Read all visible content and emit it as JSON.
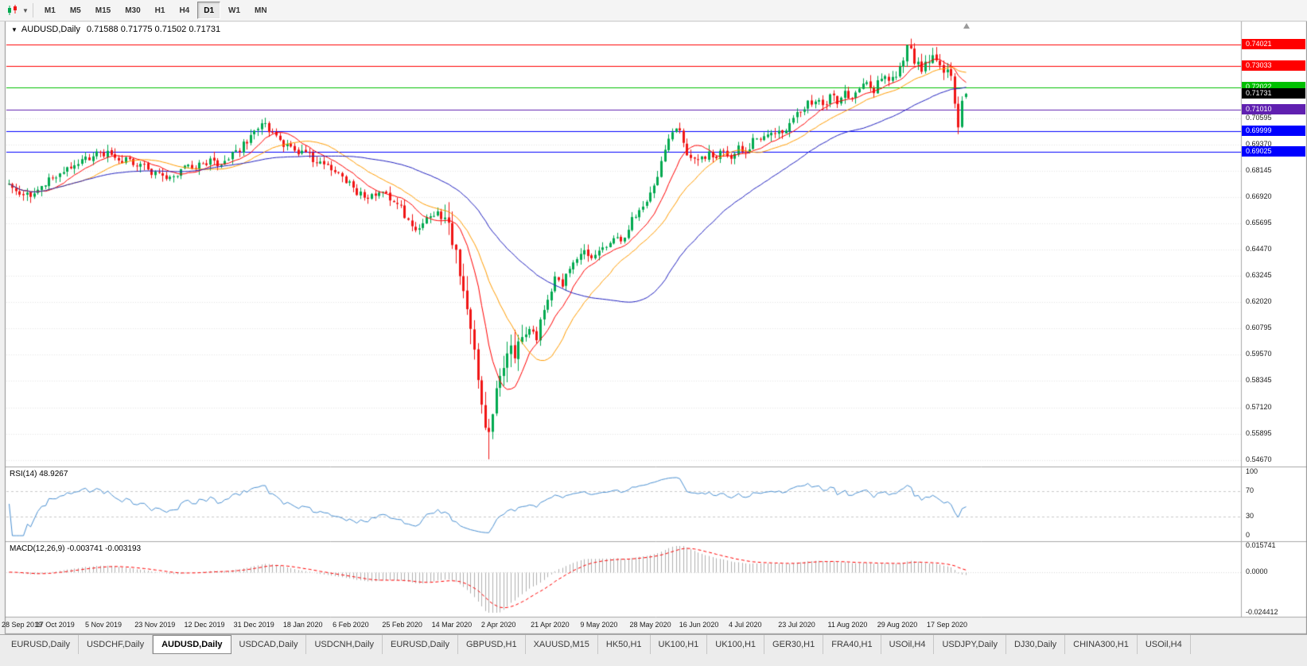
{
  "toolbar": {
    "timeframes": [
      {
        "label": "M1",
        "active": false
      },
      {
        "label": "M5",
        "active": false
      },
      {
        "label": "M15",
        "active": false
      },
      {
        "label": "M30",
        "active": false
      },
      {
        "label": "H1",
        "active": false
      },
      {
        "label": "H4",
        "active": false
      },
      {
        "label": "D1",
        "active": true
      },
      {
        "label": "W1",
        "active": false
      },
      {
        "label": "MN",
        "active": false
      }
    ]
  },
  "chart_data": {
    "type": "candlestick",
    "symbol": "AUDUSD,Daily",
    "ohlc_text": "0.71588 0.71775 0.71502 0.71731",
    "last_candle": {
      "o": 0.71588,
      "h": 0.71775,
      "l": 0.71502,
      "c": 0.71731
    },
    "price_range": {
      "top": 0.7455,
      "bottom": 0.544
    },
    "bars": 262,
    "up_color": "#00a94f",
    "down_color": "#f01515",
    "grid_color": "#e6e6e6",
    "y_ticks": [
      {
        "label": "0.70595",
        "value": 0.70595
      },
      {
        "label": "0.69370",
        "value": 0.6937
      },
      {
        "label": "0.68145",
        "value": 0.68145
      },
      {
        "label": "0.66920",
        "value": 0.6692
      },
      {
        "label": "0.65695",
        "value": 0.65695
      },
      {
        "label": "0.64470",
        "value": 0.6447
      },
      {
        "label": "0.63245",
        "value": 0.63245
      },
      {
        "label": "0.62020",
        "value": 0.6202
      },
      {
        "label": "0.60795",
        "value": 0.60795
      },
      {
        "label": "0.59570",
        "value": 0.5957
      },
      {
        "label": "0.58345",
        "value": 0.58345
      },
      {
        "label": "0.57120",
        "value": 0.5712
      },
      {
        "label": "0.55895",
        "value": 0.55895
      },
      {
        "label": "0.54670",
        "value": 0.5467
      }
    ],
    "price_lines": [
      {
        "label": "0.74021",
        "value": 0.74021,
        "color": "#ff0000"
      },
      {
        "label": "0.73033",
        "value": 0.73033,
        "color": "#ff0000"
      },
      {
        "label": "0.72022",
        "value": 0.72022,
        "color": "#00c000"
      },
      {
        "label": "0.71010",
        "value": 0.7101,
        "color": "#6020b0"
      },
      {
        "label": "0.69999",
        "value": 0.69999,
        "color": "#0000ff"
      },
      {
        "label": "0.69025",
        "value": 0.69025,
        "color": "#0000ff"
      }
    ],
    "current_price": {
      "label": "0.71731",
      "value": 0.71731,
      "color": "#000000"
    },
    "x_labels": [
      "28 Sep 2019",
      "17 Oct 2019",
      "5 Nov 2019",
      "23 Nov 2019",
      "12 Dec 2019",
      "31 Dec 2019",
      "18 Jan 2020",
      "6 Feb 2020",
      "25 Feb 2020",
      "14 Mar 2020",
      "2 Apr 2020",
      "21 Apr 2020",
      "9 May 2020",
      "28 May 2020",
      "16 Jun 2020",
      "4 Jul 2020",
      "23 Jul 2020",
      "11 Aug 2020",
      "29 Aug 2020",
      "17 Sep 2020"
    ],
    "waypoints": [
      [
        0,
        0.676
      ],
      [
        3,
        0.6718
      ],
      [
        6,
        0.67
      ],
      [
        9,
        0.6755
      ],
      [
        14,
        0.679
      ],
      [
        18,
        0.6845
      ],
      [
        23,
        0.6885
      ],
      [
        26,
        0.69
      ],
      [
        30,
        0.687
      ],
      [
        34,
        0.6855
      ],
      [
        38,
        0.682
      ],
      [
        41,
        0.68
      ],
      [
        44,
        0.6785
      ],
      [
        47,
        0.6815
      ],
      [
        51,
        0.6835
      ],
      [
        54,
        0.686
      ],
      [
        57,
        0.6845
      ],
      [
        60,
        0.688
      ],
      [
        63,
        0.692
      ],
      [
        66,
        0.6965
      ],
      [
        68,
        0.7015
      ],
      [
        70,
        0.7025
      ],
      [
        72,
        0.699
      ],
      [
        75,
        0.694
      ],
      [
        78,
        0.69
      ],
      [
        81,
        0.689
      ],
      [
        84,
        0.6865
      ],
      [
        87,
        0.6845
      ],
      [
        90,
        0.68
      ],
      [
        93,
        0.675
      ],
      [
        95,
        0.672
      ],
      [
        97,
        0.6685
      ],
      [
        99,
        0.67
      ],
      [
        101,
        0.6725
      ],
      [
        103,
        0.6705
      ],
      [
        105,
        0.668
      ],
      [
        107,
        0.664
      ],
      [
        109,
        0.658
      ],
      [
        111,
        0.6535
      ],
      [
        113,
        0.6555
      ],
      [
        115,
        0.6605
      ],
      [
        117,
        0.663
      ],
      [
        119,
        0.6575
      ],
      [
        121,
        0.648
      ],
      [
        123,
        0.635
      ],
      [
        125,
        0.618
      ],
      [
        127,
        0.594
      ],
      [
        129,
        0.576
      ],
      [
        131,
        0.556
      ],
      [
        132,
        0.57
      ],
      [
        133,
        0.581
      ],
      [
        134,
        0.589
      ],
      [
        135,
        0.593
      ],
      [
        136,
        0.6
      ],
      [
        137,
        0.603
      ],
      [
        138,
        0.5965
      ],
      [
        139,
        0.5985
      ],
      [
        140,
        0.6055
      ],
      [
        142,
        0.609
      ],
      [
        144,
        0.604
      ],
      [
        146,
        0.617
      ],
      [
        148,
        0.627
      ],
      [
        149,
        0.633
      ],
      [
        151,
        0.629
      ],
      [
        153,
        0.6365
      ],
      [
        155,
        0.6415
      ],
      [
        157,
        0.644
      ],
      [
        159,
        0.639
      ],
      [
        161,
        0.646
      ],
      [
        163,
        0.6455
      ],
      [
        165,
        0.651
      ],
      [
        167,
        0.6475
      ],
      [
        169,
        0.6555
      ],
      [
        171,
        0.661
      ],
      [
        173,
        0.666
      ],
      [
        175,
        0.67
      ],
      [
        177,
        0.68
      ],
      [
        179,
        0.693
      ],
      [
        181,
        0.7
      ],
      [
        183,
        0.699
      ],
      [
        185,
        0.6905
      ],
      [
        187,
        0.686
      ],
      [
        189,
        0.687
      ],
      [
        191,
        0.6895
      ],
      [
        193,
        0.687
      ],
      [
        195,
        0.6915
      ],
      [
        197,
        0.6885
      ],
      [
        199,
        0.6925
      ],
      [
        201,
        0.6895
      ],
      [
        203,
        0.695
      ],
      [
        205,
        0.6945
      ],
      [
        207,
        0.6985
      ],
      [
        209,
        0.7005
      ],
      [
        211,
        0.6975
      ],
      [
        213,
        0.7035
      ],
      [
        215,
        0.708
      ],
      [
        216,
        0.7105
      ],
      [
        218,
        0.7125
      ],
      [
        220,
        0.7155
      ],
      [
        222,
        0.7105
      ],
      [
        224,
        0.7165
      ],
      [
        226,
        0.7135
      ],
      [
        228,
        0.7185
      ],
      [
        230,
        0.7155
      ],
      [
        232,
        0.7185
      ],
      [
        234,
        0.7225
      ],
      [
        236,
        0.7195
      ],
      [
        238,
        0.7255
      ],
      [
        240,
        0.7225
      ],
      [
        242,
        0.7265
      ],
      [
        243,
        0.7285
      ],
      [
        244,
        0.734
      ],
      [
        245,
        0.7385
      ],
      [
        246,
        0.737
      ],
      [
        247,
        0.733
      ],
      [
        248,
        0.73
      ],
      [
        249,
        0.7285
      ],
      [
        250,
        0.731
      ],
      [
        251,
        0.732
      ],
      [
        252,
        0.7335
      ],
      [
        253,
        0.733
      ],
      [
        254,
        0.7305
      ],
      [
        255,
        0.729
      ],
      [
        256,
        0.727
      ],
      [
        257,
        0.724
      ],
      [
        258,
        0.714
      ],
      [
        259,
        0.704
      ],
      [
        260,
        0.712
      ],
      [
        261,
        0.71731
      ]
    ],
    "anchors": [
      {
        "bar": 131,
        "field": "l",
        "value": 0.547
      },
      {
        "bar": 245,
        "field": "h",
        "value": 0.74021
      },
      {
        "bar": 259,
        "field": "l",
        "value": 0.6985
      }
    ],
    "moving_averages": [
      {
        "period": 10,
        "color": "#ff0000"
      },
      {
        "period": 21,
        "color": "#ff9c00"
      },
      {
        "period": 50,
        "color": "#2020c0"
      }
    ],
    "rsi": {
      "label": "RSI(14) 48.9267",
      "period": 14,
      "current": 48.9267,
      "color": "#4a90d2",
      "guides": [
        70,
        30
      ],
      "scale_labels": [
        {
          "label": "100",
          "value": 100
        },
        {
          "label": "70",
          "value": 70
        },
        {
          "label": "30",
          "value": 30
        },
        {
          "label": "0",
          "value": 0
        }
      ]
    },
    "macd": {
      "label": "MACD(12,26,9) -0.003741 -0.003193",
      "fast": 12,
      "slow": 26,
      "signal": 9,
      "macd_value": -0.003741,
      "signal_value": -0.003193,
      "histogram_color": "#b0b0b0",
      "signal_color": "#ff0000",
      "range": {
        "top": 0.015741,
        "bottom": -0.024412
      },
      "scale_labels": [
        {
          "label": "0.015741",
          "value": 0.015741
        },
        {
          "label": "0.0000",
          "value": 0.0
        },
        {
          "label": "-0.024412",
          "value": -0.024412
        }
      ]
    }
  },
  "tabs": {
    "items": [
      {
        "label": "EURUSD,Daily",
        "active": false
      },
      {
        "label": "USDCHF,Daily",
        "active": false
      },
      {
        "label": "AUDUSD,Daily",
        "active": true
      },
      {
        "label": "USDCAD,Daily",
        "active": false
      },
      {
        "label": "USDCNH,Daily",
        "active": false
      },
      {
        "label": "EURUSD,Daily",
        "active": false
      },
      {
        "label": "GBPUSD,H1",
        "active": false
      },
      {
        "label": "XAUUSD,M15",
        "active": false
      },
      {
        "label": "HK50,H1",
        "active": false
      },
      {
        "label": "UK100,H1",
        "active": false
      },
      {
        "label": "UK100,H1",
        "active": false
      },
      {
        "label": "GER30,H1",
        "active": false
      },
      {
        "label": "FRA40,H1",
        "active": false
      },
      {
        "label": "USOil,H4",
        "active": false
      },
      {
        "label": "USDJPY,Daily",
        "active": false
      },
      {
        "label": "DJ30,Daily",
        "active": false
      },
      {
        "label": "CHINA300,H1",
        "active": false
      },
      {
        "label": "USOil,H4",
        "active": false
      }
    ]
  }
}
